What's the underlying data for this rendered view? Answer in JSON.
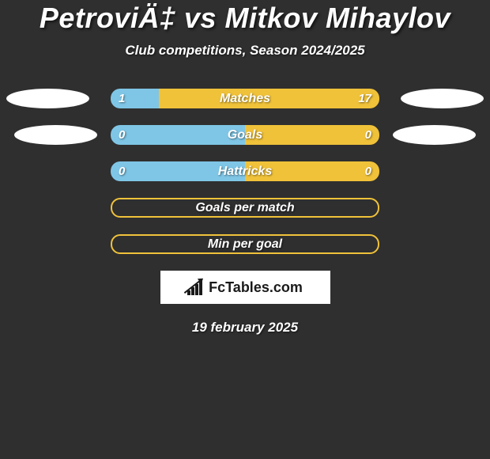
{
  "title": "PetroviÄ‡ vs Mitkov Mihaylov",
  "subtitle": "Club competitions, Season 2024/2025",
  "date": "19 february 2025",
  "logo_text": "FcTables.com",
  "colors": {
    "bg": "#2f2f2f",
    "left": "#7fc6e6",
    "right": "#f0c23a",
    "empty_border": "#f0c23a",
    "text": "#ffffff"
  },
  "rows": [
    {
      "type": "compare",
      "label": "Matches",
      "left_value": "1",
      "right_value": "17",
      "left_pct": 18,
      "right_pct": 82,
      "left_color": "#7fc6e6",
      "right_color": "#f0c23a",
      "show_ellipses": true,
      "ellipse_indent": false
    },
    {
      "type": "compare",
      "label": "Goals",
      "left_value": "0",
      "right_value": "0",
      "left_pct": 50,
      "right_pct": 50,
      "left_color": "#7fc6e6",
      "right_color": "#f0c23a",
      "show_ellipses": true,
      "ellipse_indent": true
    },
    {
      "type": "compare",
      "label": "Hattricks",
      "left_value": "0",
      "right_value": "0",
      "left_pct": 50,
      "right_pct": 50,
      "left_color": "#7fc6e6",
      "right_color": "#f0c23a",
      "show_ellipses": false,
      "ellipse_indent": false
    },
    {
      "type": "empty",
      "label": "Goals per match",
      "border_color": "#f0c23a"
    },
    {
      "type": "empty",
      "label": "Min per goal",
      "border_color": "#f0c23a"
    }
  ]
}
